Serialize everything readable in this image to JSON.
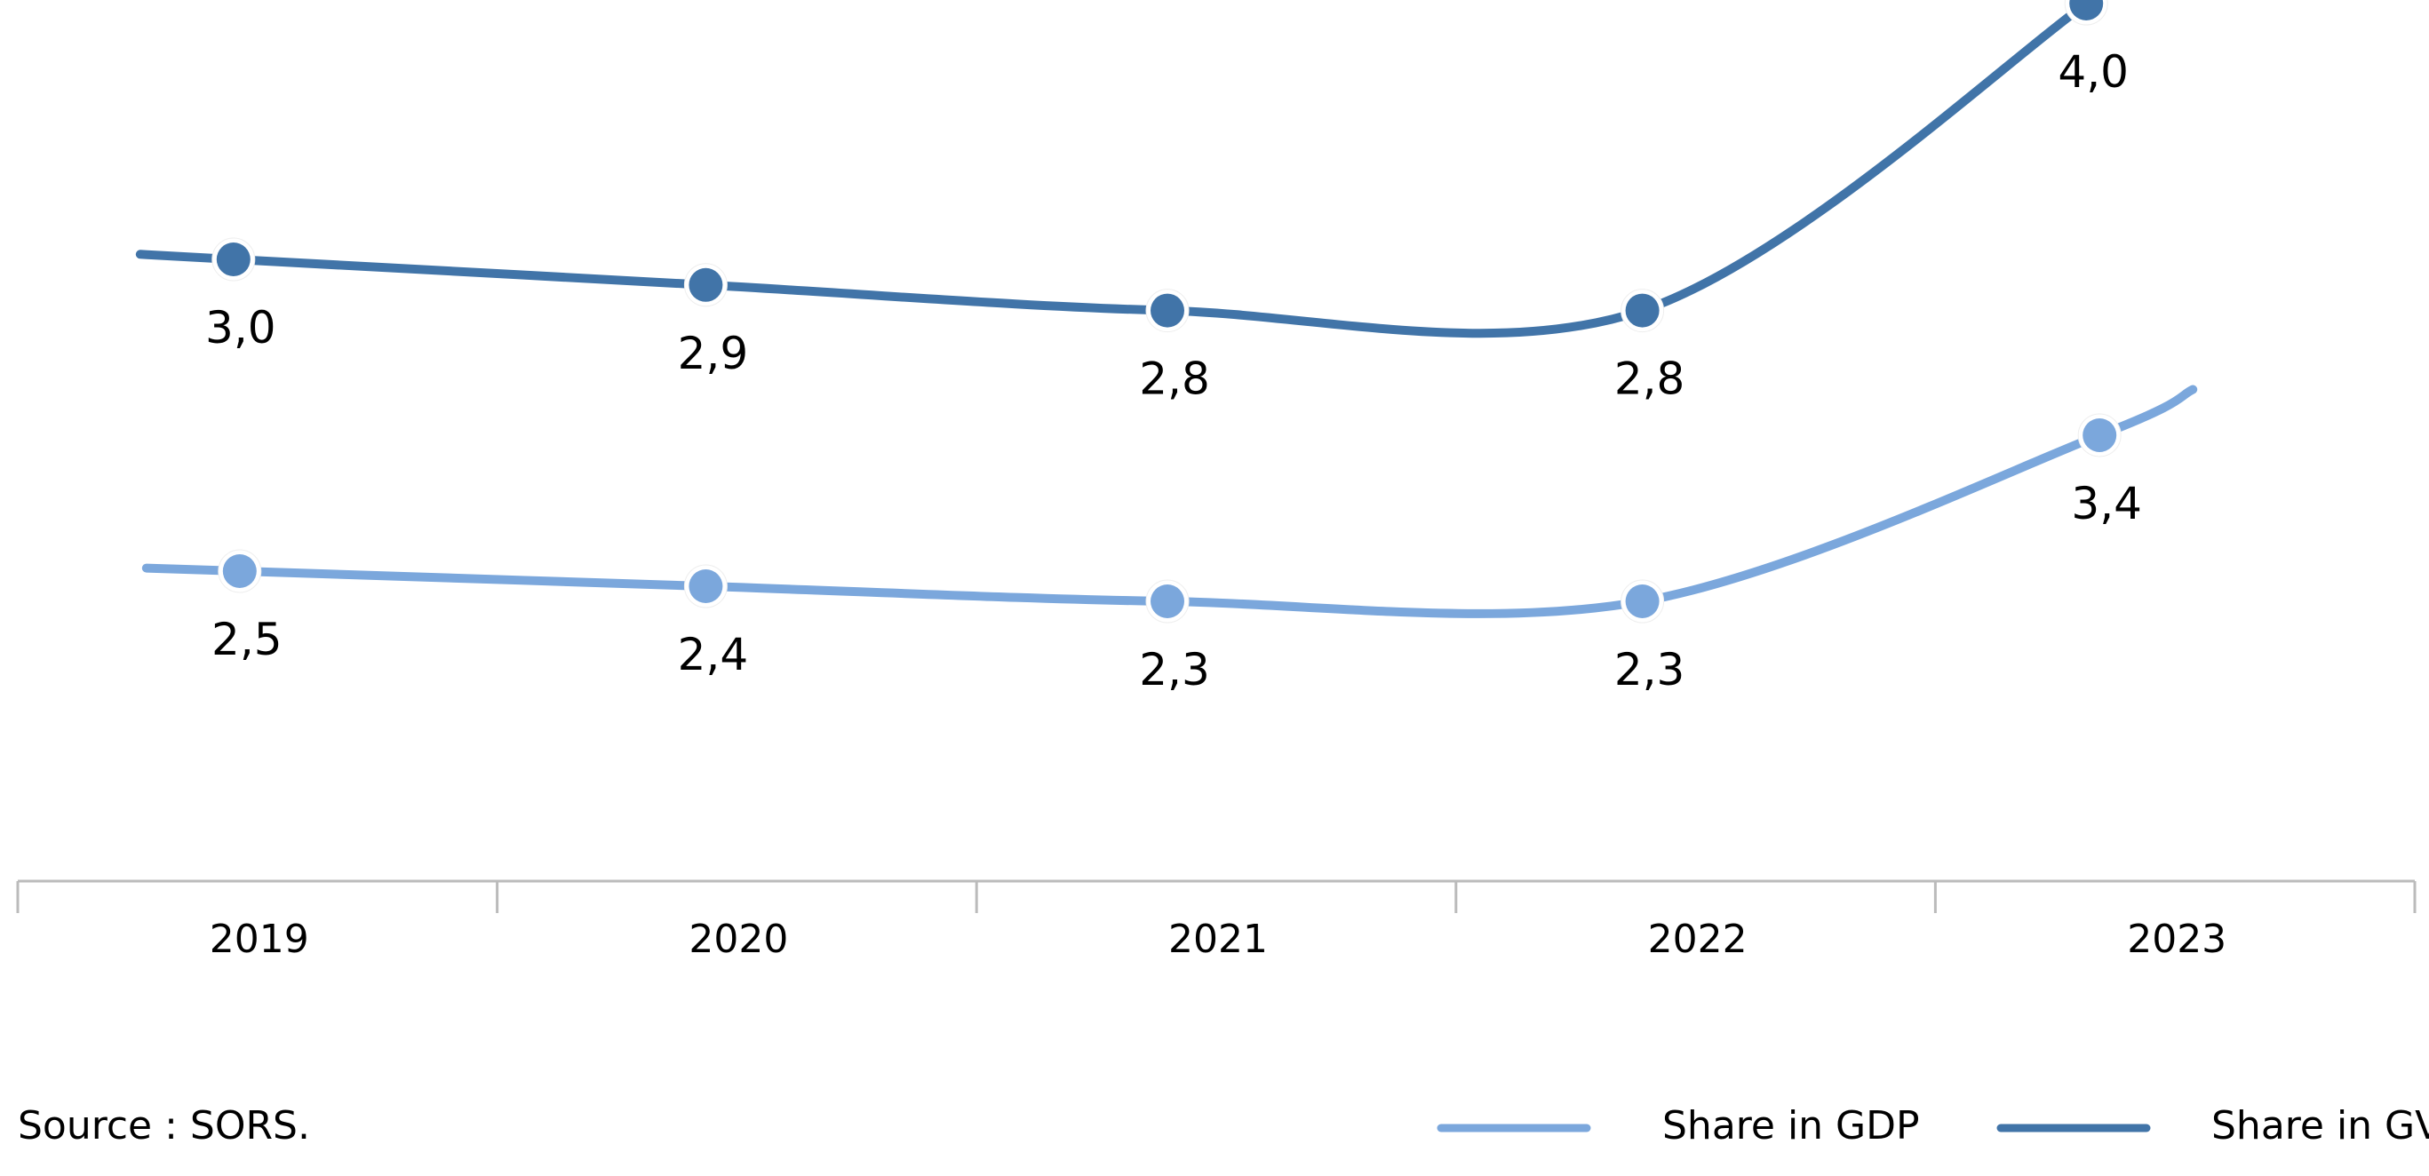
{
  "chart_data": {
    "type": "line",
    "categories": [
      "2019",
      "2020",
      "2021",
      "2022",
      "2023"
    ],
    "series": [
      {
        "name": "Share in GDP",
        "values": [
          2.5,
          2.4,
          2.3,
          2.3,
          3.4
        ],
        "labels": [
          "2,5",
          "2,4",
          "2,3",
          "2,3",
          "3,4"
        ],
        "color": "#7BA7DC"
      },
      {
        "name": "Share in GVA",
        "values": [
          3.0,
          2.9,
          2.8,
          2.8,
          4.0
        ],
        "labels": [
          "3,0",
          "2,9",
          "2,8",
          "2,8",
          "4,0"
        ],
        "color": "#4174A8"
      }
    ],
    "smooth": true,
    "grid": false,
    "y_axis_visible": false,
    "legend": {
      "position": "bottom-right",
      "entries": [
        "Share in GDP",
        "Share in GVA"
      ]
    },
    "axis_color": "#BBBBBB"
  },
  "source": {
    "text": "Source : SORS."
  }
}
